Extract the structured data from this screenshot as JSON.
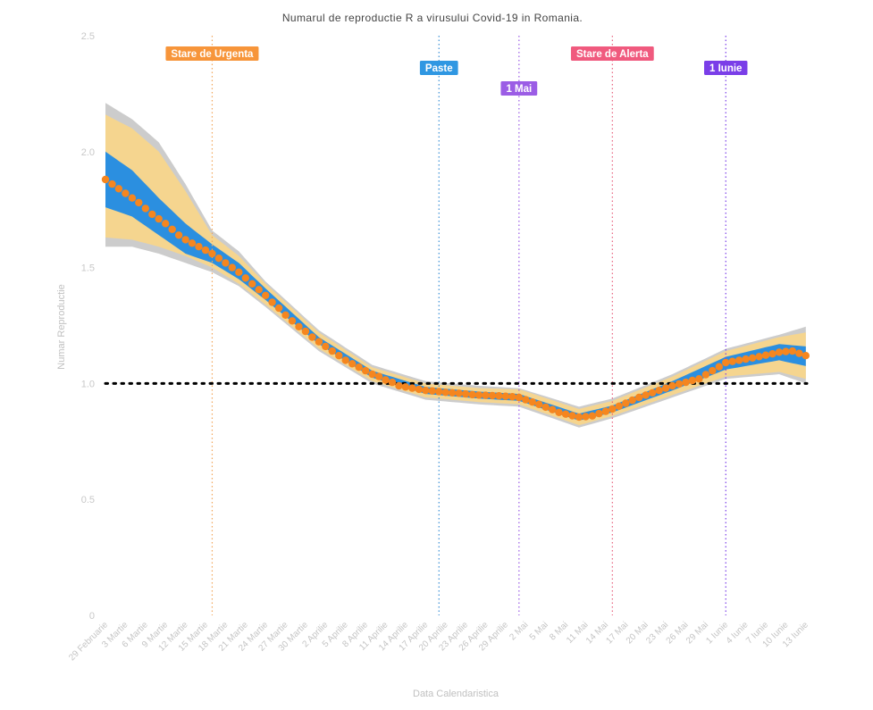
{
  "chart_data": {
    "type": "line",
    "title": "Numarul de reproductie R a virusului Covid-19 in Romania.",
    "xlabel": "Data Calendaristica",
    "ylabel": "Numar Reproductie",
    "ylim": [
      0,
      2.5
    ],
    "yticks": [
      "0",
      "0.5",
      "1.0",
      "1.5",
      "2.0",
      "2.5"
    ],
    "ytick_values": [
      0,
      0.5,
      1.0,
      1.5,
      2.0,
      2.5
    ],
    "x_start": "29 Februarie",
    "x_days": 106,
    "xtick_labels": [
      "29 Februarie",
      "3 Martie",
      "6 Martie",
      "9 Martie",
      "12 Martie",
      "15 Martie",
      "18 Martie",
      "21 Martie",
      "24 Martie",
      "27 Martie",
      "30 Martie",
      "2 Aprilie",
      "5 Aprilie",
      "8 Aprilie",
      "11 Aprilie",
      "14 Aprilie",
      "17 Aprilie",
      "20 Aprilie",
      "23 Aprilie",
      "26 Aprilie",
      "29 Aprilie",
      "2 Mai",
      "5 Mai",
      "8 Mai",
      "11 Mai",
      "14 Mai",
      "17 Mai",
      "20 Mai",
      "23 Mai",
      "26 Mai",
      "29 Mai",
      "1 Iunie",
      "4 Iunie",
      "7 Iunie",
      "10 Iunie",
      "13 Iunie"
    ],
    "xtick_step_days": 3,
    "grid": false,
    "reference_line": {
      "value": 1.0,
      "style": "dotted",
      "color": "#000000"
    },
    "series": [
      {
        "name": "R",
        "color": "#f5861f",
        "values": [
          1.88,
          1.86,
          1.84,
          1.82,
          1.8,
          1.78,
          1.755,
          1.73,
          1.71,
          1.69,
          1.665,
          1.64,
          1.62,
          1.605,
          1.59,
          1.575,
          1.56,
          1.54,
          1.52,
          1.5,
          1.48,
          1.455,
          1.43,
          1.405,
          1.38,
          1.35,
          1.325,
          1.295,
          1.27,
          1.245,
          1.225,
          1.2,
          1.18,
          1.16,
          1.14,
          1.12,
          1.1,
          1.085,
          1.07,
          1.055,
          1.04,
          1.03,
          1.015,
          1.005,
          0.99,
          0.985,
          0.98,
          0.975,
          0.97,
          0.968,
          0.965,
          0.962,
          0.96,
          0.958,
          0.955,
          0.952,
          0.95,
          0.949,
          0.948,
          0.947,
          0.945,
          0.943,
          0.94,
          0.93,
          0.92,
          0.91,
          0.898,
          0.887,
          0.875,
          0.868,
          0.861,
          0.855,
          0.857,
          0.86,
          0.87,
          0.88,
          0.89,
          0.902,
          0.915,
          0.928,
          0.94,
          0.95,
          0.96,
          0.97,
          0.98,
          0.99,
          0.998,
          1.005,
          1.013,
          1.02,
          1.038,
          1.055,
          1.072,
          1.09,
          1.095,
          1.1,
          1.105,
          1.11,
          1.116,
          1.122,
          1.128,
          1.135,
          1.138,
          1.14,
          1.13,
          1.12
        ]
      }
    ],
    "bands": {
      "colors": {
        "gray": "#cccccc",
        "yellow": "#f5d58f",
        "blue": "#2b8fe0"
      },
      "anchors": [
        {
          "day": 0,
          "gray": [
            1.59,
            2.21
          ],
          "yellow": [
            1.63,
            2.16
          ],
          "blue": [
            1.76,
            2.0
          ]
        },
        {
          "day": 4,
          "gray": [
            1.59,
            2.14
          ],
          "yellow": [
            1.62,
            2.1
          ],
          "blue": [
            1.72,
            1.92
          ]
        },
        {
          "day": 8,
          "gray": [
            1.56,
            2.04
          ],
          "yellow": [
            1.59,
            2.0
          ],
          "blue": [
            1.64,
            1.8
          ]
        },
        {
          "day": 12,
          "gray": [
            1.52,
            1.86
          ],
          "yellow": [
            1.55,
            1.83
          ],
          "blue": [
            1.56,
            1.69
          ]
        },
        {
          "day": 16,
          "gray": [
            1.48,
            1.66
          ],
          "yellow": [
            1.5,
            1.64
          ],
          "blue": [
            1.52,
            1.6
          ]
        },
        {
          "day": 20,
          "gray": [
            1.42,
            1.57
          ],
          "yellow": [
            1.43,
            1.55
          ],
          "blue": [
            1.45,
            1.52
          ]
        },
        {
          "day": 24,
          "gray": [
            1.33,
            1.44
          ],
          "yellow": [
            1.34,
            1.43
          ],
          "blue": [
            1.36,
            1.41
          ]
        },
        {
          "day": 32,
          "gray": [
            1.14,
            1.23
          ],
          "yellow": [
            1.15,
            1.22
          ],
          "blue": [
            1.17,
            1.2
          ]
        },
        {
          "day": 40,
          "gray": [
            1.0,
            1.08
          ],
          "yellow": [
            1.01,
            1.07
          ],
          "blue": [
            1.025,
            1.055
          ]
        },
        {
          "day": 48,
          "gray": [
            0.93,
            1.01
          ],
          "yellow": [
            0.94,
            1.0
          ],
          "blue": [
            0.955,
            0.985
          ]
        },
        {
          "day": 56,
          "gray": [
            0.91,
            0.99
          ],
          "yellow": [
            0.92,
            0.98
          ],
          "blue": [
            0.935,
            0.965
          ]
        },
        {
          "day": 62,
          "gray": [
            0.9,
            0.98
          ],
          "yellow": [
            0.91,
            0.975
          ],
          "blue": [
            0.925,
            0.955
          ]
        },
        {
          "day": 71,
          "gray": [
            0.81,
            0.9
          ],
          "yellow": [
            0.82,
            0.89
          ],
          "blue": [
            0.84,
            0.87
          ]
        },
        {
          "day": 76,
          "gray": [
            0.85,
            0.935
          ],
          "yellow": [
            0.86,
            0.925
          ],
          "blue": [
            0.875,
            0.905
          ]
        },
        {
          "day": 85,
          "gray": [
            0.94,
            1.04
          ],
          "yellow": [
            0.95,
            1.03
          ],
          "blue": [
            0.97,
            1.01
          ]
        },
        {
          "day": 93,
          "gray": [
            1.02,
            1.15
          ],
          "yellow": [
            1.03,
            1.14
          ],
          "blue": [
            1.06,
            1.115
          ]
        },
        {
          "day": 101,
          "gray": [
            1.04,
            1.21
          ],
          "yellow": [
            1.05,
            1.2
          ],
          "blue": [
            1.1,
            1.17
          ]
        },
        {
          "day": 105,
          "gray": [
            1.0,
            1.245
          ],
          "yellow": [
            1.02,
            1.22
          ],
          "blue": [
            1.075,
            1.16
          ]
        }
      ]
    },
    "annotations": [
      {
        "label": "Stare de Urgenta",
        "day": 16,
        "color": "#f7953a",
        "line_color": "#f2a65a",
        "level": 0
      },
      {
        "label": "Paste",
        "day": 50,
        "color": "#2f97e2",
        "line_color": "#3a8fd6",
        "level": 1
      },
      {
        "label": "1 Mai",
        "day": 62,
        "color": "#9b5de5",
        "line_color": "#9b5de5",
        "level": 2
      },
      {
        "label": "Stare de Alerta",
        "day": 76,
        "color": "#f05a7e",
        "line_color": "#e8607d",
        "level": 0
      },
      {
        "label": "1 Iunie",
        "day": 93,
        "color": "#7a3ee8",
        "line_color": "#7a3ee8",
        "level": 1
      }
    ]
  }
}
